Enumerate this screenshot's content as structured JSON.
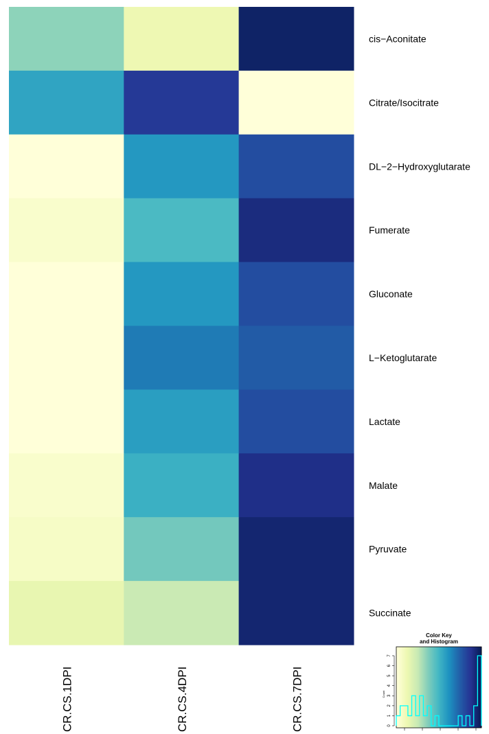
{
  "chart_data": [
    {
      "type": "heatmap",
      "title": "",
      "xlabel": "",
      "ylabel": "",
      "columns": [
        "CR.CS.1DPI",
        "CR.CS.4DPI",
        "CR.CS.7DPI"
      ],
      "rows": [
        "cis−Aconitate",
        "Citrate/Isocitrate",
        "DL−2−Hydroxyglutarate",
        "Fumerate",
        "Gluconate",
        "L−Ketoglutarate",
        "Lactate",
        "Malate",
        "Pyruvate",
        "Succinate"
      ],
      "color_scale": "YlGnBu",
      "color_stops": [
        "#ffffd9",
        "#edf8b1",
        "#c7e9b4",
        "#7fcdbb",
        "#41b6c4",
        "#1d91c0",
        "#225ea8",
        "#253494",
        "#081d58"
      ],
      "values": [
        [
          0.35,
          0.12,
          0.97
        ],
        [
          0.56,
          0.86,
          0.0
        ],
        [
          0.0,
          0.6,
          0.8
        ],
        [
          0.04,
          0.48,
          0.92
        ],
        [
          0.0,
          0.6,
          0.8
        ],
        [
          0.0,
          0.68,
          0.76
        ],
        [
          0.0,
          0.58,
          0.8
        ],
        [
          0.04,
          0.52,
          0.9
        ],
        [
          0.06,
          0.4,
          0.95
        ],
        [
          0.14,
          0.24,
          0.95
        ]
      ],
      "grid": false,
      "legend": "bottom-right"
    },
    {
      "type": "histogram",
      "title": "Color Key\nand Histogram",
      "title_lines": [
        "Color Key",
        "and Histogram"
      ],
      "ylabel": "Count",
      "y_ticks": [
        "0",
        "1",
        "2",
        "3",
        "4",
        "5",
        "6",
        "7"
      ],
      "ylim": [
        0,
        7
      ],
      "counts": [
        1,
        2,
        2,
        1,
        3,
        1,
        3,
        1,
        2,
        0,
        1,
        0,
        0,
        0,
        0,
        0,
        1,
        0,
        1,
        0,
        2,
        7
      ],
      "line_color": "#00ffff"
    }
  ]
}
